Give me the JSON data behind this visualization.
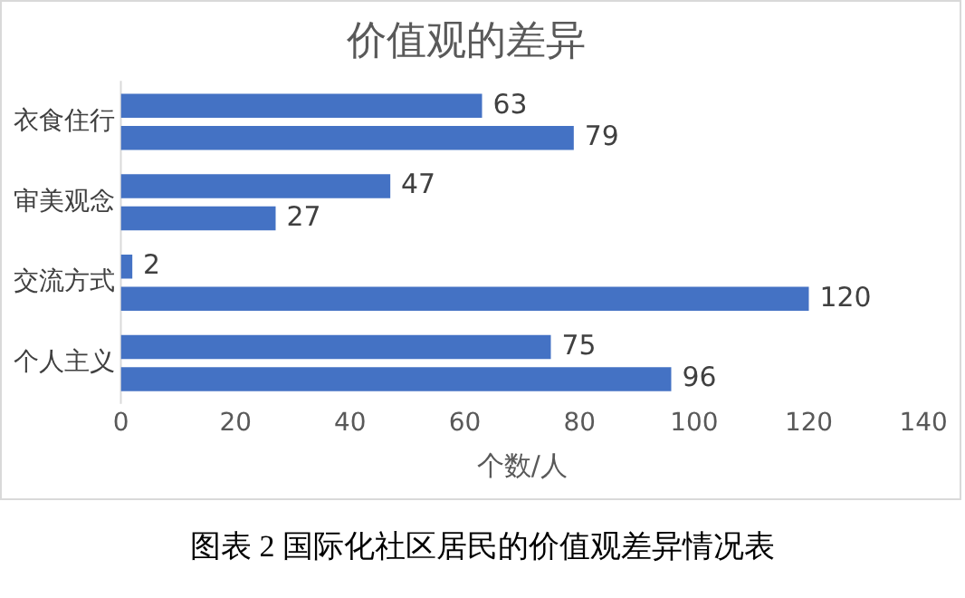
{
  "chart_data": {
    "type": "bar",
    "orientation": "horizontal",
    "title": "价值观的差异",
    "xlabel": "个数/人",
    "categories": [
      "衣食住行",
      "审美观念",
      "交流方式",
      "个人主义"
    ],
    "series": [
      {
        "color": "#4472c4",
        "values": [
          63,
          47,
          2,
          75
        ]
      },
      {
        "color": "#4472c4",
        "values": [
          79,
          27,
          120,
          96
        ]
      }
    ],
    "xlim": [
      0,
      140
    ],
    "xticks": [
      0,
      20,
      40,
      60,
      80,
      100,
      120,
      140
    ],
    "grid": false,
    "legend": false,
    "data_labels": true,
    "annotations": [
      "图表 2 国际化社区居民的价值观差异情况表"
    ]
  }
}
